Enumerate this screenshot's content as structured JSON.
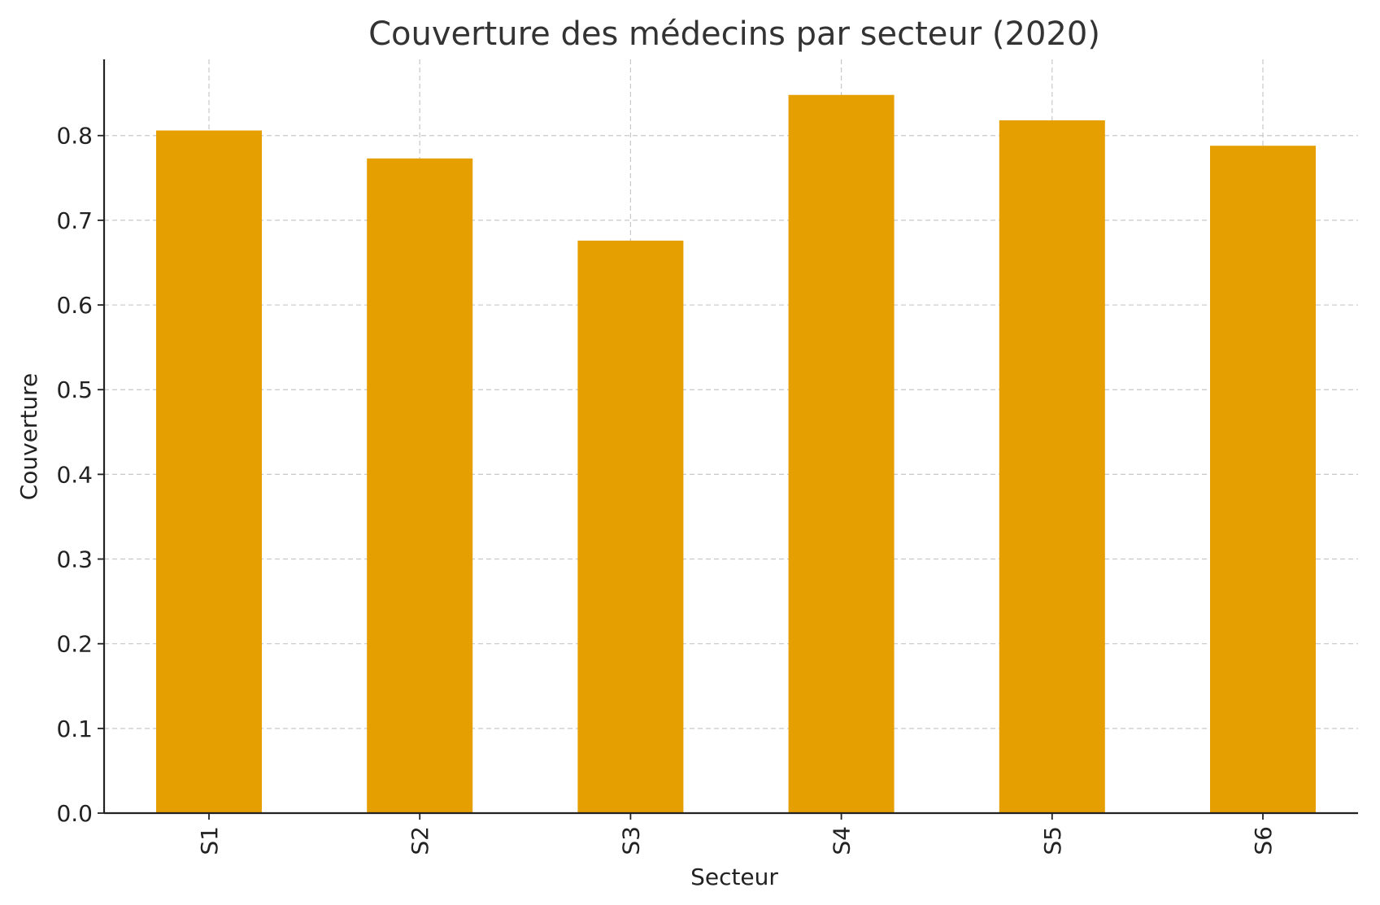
{
  "chart_data": {
    "type": "bar",
    "title": "Couverture des médecins par secteur (2020)",
    "xlabel": "Secteur",
    "ylabel": "Couverture",
    "categories": [
      "S1",
      "S2",
      "S3",
      "S4",
      "S5",
      "S6"
    ],
    "values": [
      0.806,
      0.773,
      0.676,
      0.848,
      0.818,
      0.788
    ],
    "ylim": [
      0,
      0.89
    ],
    "yticks": [
      0.0,
      0.1,
      0.2,
      0.3,
      0.4,
      0.5,
      0.6,
      0.7,
      0.8
    ],
    "ytick_labels": [
      "0.0",
      "0.1",
      "0.2",
      "0.3",
      "0.4",
      "0.5",
      "0.6",
      "0.7",
      "0.8"
    ],
    "bar_color": "#E69F00",
    "grid": true,
    "legend": "none"
  }
}
